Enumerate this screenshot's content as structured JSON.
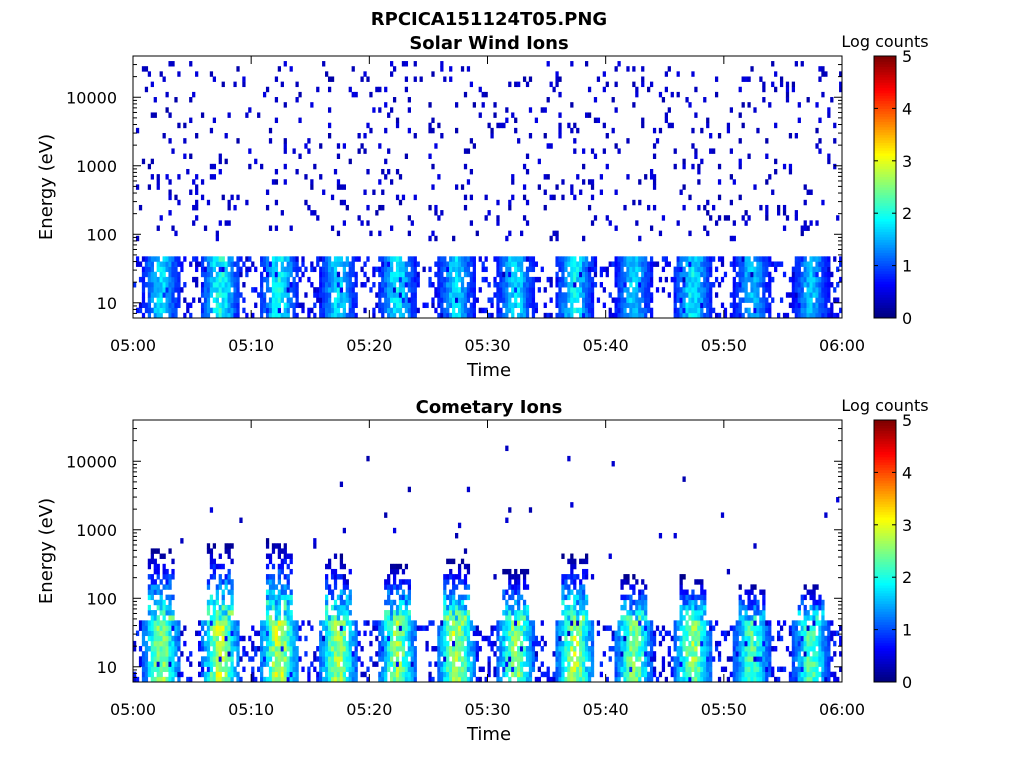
{
  "figure_title": "RPCICA151124T05.PNG",
  "chart_data": [
    {
      "type": "heatmap",
      "title": "Solar Wind Ions",
      "xlabel": "Time",
      "ylabel": "Energy (eV)",
      "x_tick_labels": [
        "05:00",
        "05:10",
        "05:20",
        "05:30",
        "05:40",
        "05:50",
        "06:00"
      ],
      "xlim": [
        "05:00",
        "06:00"
      ],
      "y_scale": "log",
      "ylim": [
        6,
        40000
      ],
      "y_tick_labels": [
        "10",
        "100",
        "1000",
        "10000"
      ],
      "colorbar": {
        "label": "Log counts",
        "range": [
          0,
          5
        ],
        "tick_labels": [
          "0",
          "1",
          "2",
          "3",
          "4",
          "5"
        ],
        "colormap": "jet"
      },
      "grid": false,
      "intensity_profile": {
        "description_values": "approximate peak log counts near 10-40 eV, by 5-minute bin",
        "times": [
          "05:00",
          "05:05",
          "05:10",
          "05:15",
          "05:20",
          "05:25",
          "05:30",
          "05:35",
          "05:40",
          "05:45",
          "05:50",
          "05:55"
        ],
        "peak_log_counts": [
          2.0,
          2.3,
          2.2,
          2.0,
          2.1,
          2.0,
          2.0,
          2.1,
          1.9,
          2.1,
          1.8,
          1.8
        ]
      },
      "background_scatter": {
        "energy_range_eV": [
          80,
          40000
        ],
        "log_counts": 0.2
      }
    },
    {
      "type": "heatmap",
      "title": "Cometary Ions",
      "xlabel": "Time",
      "ylabel": "Energy (eV)",
      "x_tick_labels": [
        "05:00",
        "05:10",
        "05:20",
        "05:30",
        "05:40",
        "05:50",
        "06:00"
      ],
      "xlim": [
        "05:00",
        "06:00"
      ],
      "y_scale": "log",
      "ylim": [
        6,
        40000
      ],
      "y_tick_labels": [
        "10",
        "100",
        "1000",
        "10000"
      ],
      "colorbar": {
        "label": "Log counts",
        "range": [
          0,
          5
        ],
        "tick_labels": [
          "0",
          "1",
          "2",
          "3",
          "4",
          "5"
        ],
        "colormap": "jet"
      },
      "grid": false,
      "intensity_profile": {
        "times": [
          "05:00",
          "05:05",
          "05:10",
          "05:15",
          "05:20",
          "05:25",
          "05:30",
          "05:35",
          "05:40",
          "05:45",
          "05:50",
          "05:55"
        ],
        "peak_log_counts": [
          3.0,
          3.3,
          3.3,
          3.1,
          3.0,
          3.2,
          3.0,
          3.1,
          2.9,
          3.0,
          2.6,
          2.6
        ]
      },
      "high_energy_streaks_eV_max": [
        500,
        600,
        700,
        400,
        300,
        350,
        250,
        400,
        200,
        200,
        150,
        150
      ],
      "background_scatter": {
        "energy_range_eV": [
          150,
          20000
        ],
        "log_counts": 0.2
      }
    }
  ]
}
